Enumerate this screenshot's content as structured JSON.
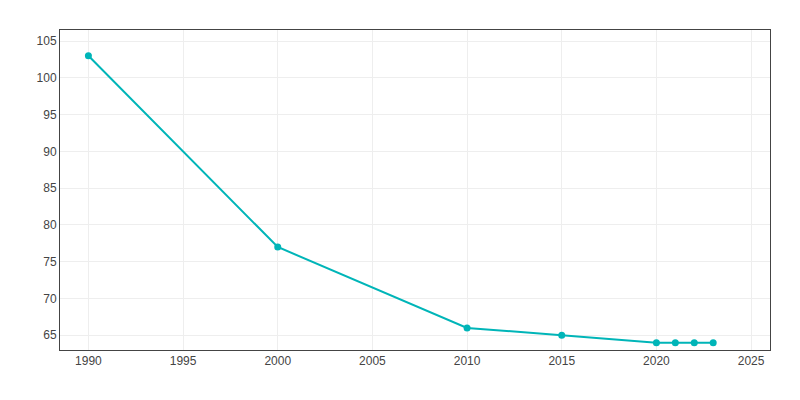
{
  "chart_data": {
    "type": "line",
    "x": [
      1990,
      2000,
      2010,
      2015,
      2020,
      2021,
      2022,
      2023
    ],
    "values": [
      103,
      77,
      66,
      65,
      64,
      64,
      64,
      64
    ],
    "color": "#00b5b8",
    "marker": "circle",
    "xlim": [
      1988.5,
      2026
    ],
    "ylim": [
      63,
      106.5
    ],
    "xticks": [
      1990,
      1995,
      2000,
      2005,
      2010,
      2015,
      2020,
      2025
    ],
    "yticks": [
      65,
      70,
      75,
      80,
      85,
      90,
      95,
      100,
      105
    ],
    "grid": true
  }
}
